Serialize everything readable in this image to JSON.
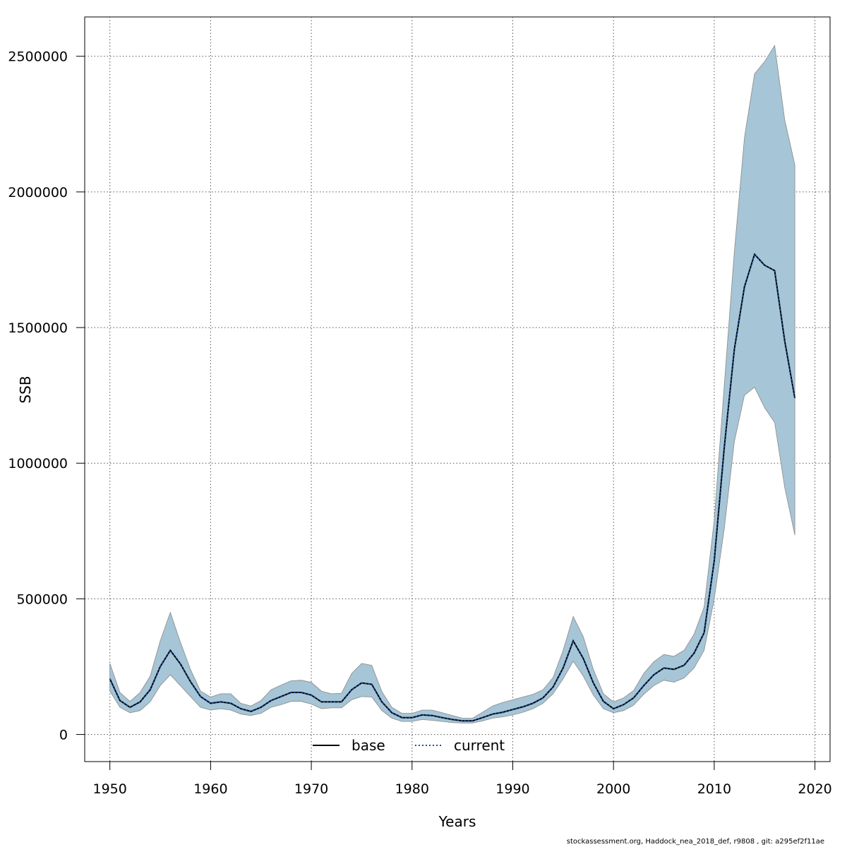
{
  "chart_data": {
    "type": "area",
    "xlabel": "Years",
    "ylabel": "SSB",
    "xlim": [
      1947.5,
      2021.5
    ],
    "ylim": [
      -100000,
      2645000
    ],
    "x_ticks": [
      1950,
      1960,
      1970,
      1980,
      1990,
      2000,
      2010,
      2020
    ],
    "y_ticks": [
      0,
      500000,
      1000000,
      1500000,
      2000000,
      2500000
    ],
    "x_tick_labels": [
      "1950",
      "1960",
      "1970",
      "1980",
      "1990",
      "2000",
      "2010",
      "2020"
    ],
    "y_tick_labels": [
      "0",
      "500000",
      "1000000",
      "1500000",
      "2000000",
      "2500000"
    ],
    "grid": true,
    "legend_position": "bottom",
    "x": [
      1950,
      1951,
      1952,
      1953,
      1954,
      1955,
      1956,
      1957,
      1958,
      1959,
      1960,
      1961,
      1962,
      1963,
      1964,
      1965,
      1966,
      1967,
      1968,
      1969,
      1970,
      1971,
      1972,
      1973,
      1974,
      1975,
      1976,
      1977,
      1978,
      1979,
      1980,
      1981,
      1982,
      1983,
      1984,
      1985,
      1986,
      1987,
      1988,
      1989,
      1990,
      1991,
      1992,
      1993,
      1994,
      1995,
      1996,
      1997,
      1998,
      1999,
      2000,
      2001,
      2002,
      2003,
      2004,
      2005,
      2006,
      2007,
      2008,
      2009,
      2010,
      2011,
      2012,
      2013,
      2014,
      2015,
      2016,
      2017,
      2018
    ],
    "series": [
      {
        "name": "base",
        "style": "solid",
        "color": "#000000",
        "values": [
          205000,
          125000,
          100000,
          120000,
          165000,
          250000,
          310000,
          260000,
          195000,
          140000,
          115000,
          120000,
          115000,
          95000,
          85000,
          100000,
          125000,
          140000,
          155000,
          155000,
          145000,
          120000,
          120000,
          120000,
          165000,
          190000,
          185000,
          120000,
          80000,
          62000,
          62000,
          72000,
          70000,
          62000,
          55000,
          50000,
          50000,
          62000,
          75000,
          82000,
          92000,
          102000,
          115000,
          135000,
          175000,
          245000,
          345000,
          280000,
          190000,
          122000,
          95000,
          110000,
          135000,
          180000,
          220000,
          245000,
          240000,
          255000,
          300000,
          375000,
          640000,
          1060000,
          1420000,
          1650000,
          1770000,
          1730000,
          1710000,
          1450000,
          1240000
        ]
      },
      {
        "name": "current",
        "style": "dotted",
        "color": "#1f4f9a",
        "values": [
          205000,
          125000,
          100000,
          120000,
          165000,
          250000,
          310000,
          260000,
          195000,
          140000,
          115000,
          120000,
          115000,
          95000,
          85000,
          100000,
          125000,
          140000,
          155000,
          155000,
          145000,
          120000,
          120000,
          120000,
          165000,
          190000,
          185000,
          120000,
          80000,
          62000,
          62000,
          72000,
          70000,
          62000,
          55000,
          50000,
          50000,
          62000,
          75000,
          82000,
          92000,
          102000,
          115000,
          135000,
          175000,
          245000,
          345000,
          280000,
          190000,
          122000,
          95000,
          110000,
          135000,
          180000,
          220000,
          245000,
          240000,
          255000,
          300000,
          375000,
          640000,
          1060000,
          1420000,
          1650000,
          1770000,
          1730000,
          1710000,
          1450000,
          1240000
        ]
      }
    ],
    "confidence_band": {
      "series": "current",
      "color": "#a6c5d6",
      "edge_color": "#8a8a8a",
      "lower": [
        160000,
        100000,
        80000,
        88000,
        120000,
        180000,
        220000,
        180000,
        140000,
        100000,
        90000,
        95000,
        90000,
        75000,
        70000,
        78000,
        100000,
        110000,
        122000,
        122000,
        112000,
        95000,
        98000,
        98000,
        128000,
        140000,
        138000,
        88000,
        60000,
        48000,
        48000,
        55000,
        52000,
        48000,
        44000,
        42000,
        42000,
        50000,
        60000,
        65000,
        72000,
        82000,
        95000,
        115000,
        150000,
        205000,
        270000,
        215000,
        145000,
        95000,
        80000,
        88000,
        108000,
        148000,
        180000,
        200000,
        193000,
        208000,
        245000,
        310000,
        500000,
        760000,
        1080000,
        1250000,
        1280000,
        1205000,
        1150000,
        910000,
        735000
      ],
      "upper": [
        262000,
        155000,
        122000,
        155000,
        215000,
        345000,
        450000,
        340000,
        240000,
        160000,
        138000,
        150000,
        150000,
        115000,
        105000,
        125000,
        165000,
        182000,
        198000,
        200000,
        192000,
        160000,
        150000,
        152000,
        225000,
        262000,
        255000,
        158000,
        100000,
        78000,
        78000,
        90000,
        90000,
        80000,
        70000,
        60000,
        60000,
        82000,
        105000,
        118000,
        128000,
        138000,
        148000,
        165000,
        210000,
        310000,
        435000,
        360000,
        240000,
        150000,
        120000,
        135000,
        162000,
        225000,
        268000,
        295000,
        288000,
        310000,
        370000,
        470000,
        790000,
        1290000,
        1780000,
        2200000,
        2435000,
        2480000,
        2540000,
        2265000,
        2100000
      ]
    }
  },
  "legend": {
    "items": [
      {
        "label": "base",
        "color": "#000000",
        "style": "solid"
      },
      {
        "label": "current",
        "color": "#1f4f9a",
        "style": "dotted"
      }
    ]
  },
  "footer": {
    "text": "stockassessment.org, Haddock_nea_2018_def, r9808 , git: a295ef2f11ae"
  }
}
